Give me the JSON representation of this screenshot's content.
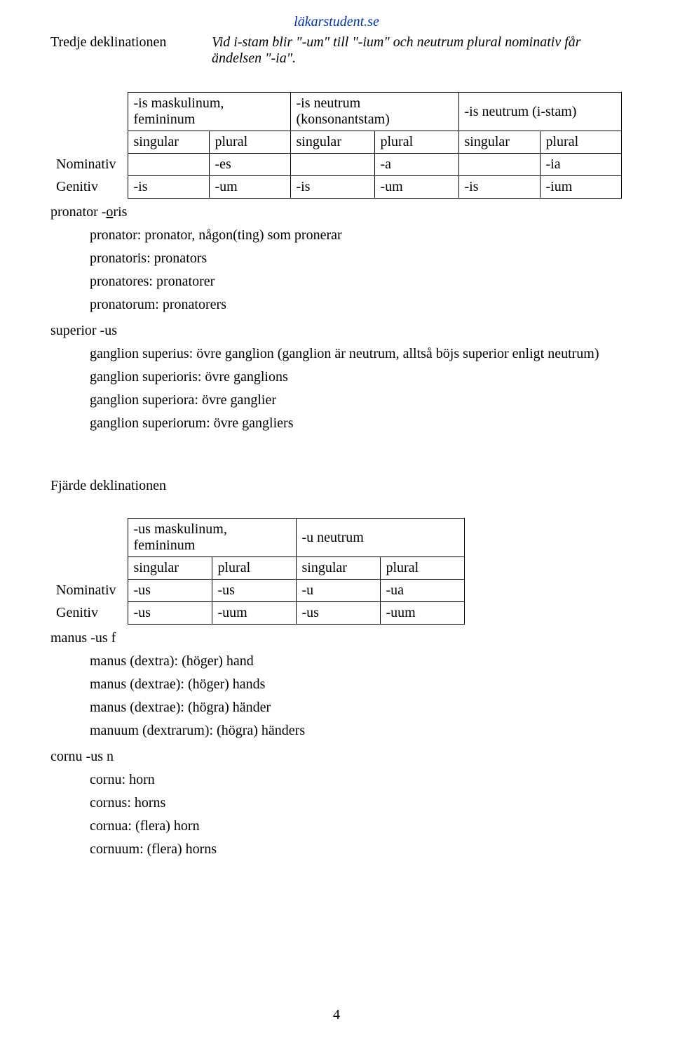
{
  "site": {
    "name": "läkarstudent.se"
  },
  "section3": {
    "title": "Tredje deklinationen",
    "subtitle": "Vid i-stam blir \"-um\" till \"-ium\" och neutrum plural nominativ får ändelsen \"-ia\".",
    "table": {
      "group_headers": [
        "-is maskulinum, femininum",
        "-is neutrum (konsonantstam)",
        "-is neutrum (i-stam)"
      ],
      "sub_headers": [
        "singular",
        "plural",
        "singular",
        "plural",
        "singular",
        "plural"
      ],
      "rows": [
        {
          "label": "Nominativ",
          "cells": [
            "",
            "-es",
            "",
            "-a",
            "",
            "-ia"
          ]
        },
        {
          "label": "Genitiv",
          "cells": [
            "-is",
            "-um",
            "-is",
            "-um",
            "-is",
            "-ium"
          ]
        }
      ]
    },
    "ex1_label": "pronator -oris",
    "ex1_label_plain_before": "pronator -",
    "ex1_label_u": "o",
    "ex1_label_plain_after": "ris",
    "ex1_lines": [
      "pronator: pronator, någon(ting) som pronerar",
      "pronatoris: pronators",
      "pronatores: pronatorer",
      "pronatorum: pronatorers"
    ],
    "ex2_label": "superior -us",
    "ex2_lines": [
      "ganglion superius: övre ganglion (ganglion är neutrum, alltså böjs superior enligt neutrum)",
      "ganglion superioris: övre ganglions",
      "ganglion superiora: övre ganglier",
      "ganglion superiorum: övre gangliers"
    ]
  },
  "section4": {
    "title": "Fjärde deklinationen",
    "table": {
      "group_headers": [
        "-us maskulinum, femininum",
        "-u neutrum"
      ],
      "sub_headers": [
        "singular",
        "plural",
        "singular",
        "plural"
      ],
      "rows": [
        {
          "label": "Nominativ",
          "cells": [
            "-us",
            "-us",
            "-u",
            "-ua"
          ]
        },
        {
          "label": "Genitiv",
          "cells": [
            "-us",
            "-uum",
            "-us",
            "-uum"
          ]
        }
      ]
    },
    "ex1_label": "manus -us f",
    "ex1_lines": [
      "manus (dextra): (höger) hand",
      "manus (dextrae): (höger) hands",
      "manus (dextrae): (högra) händer",
      "manuum (dextrarum): (högra) händers"
    ],
    "ex2_label": "cornu -us n",
    "ex2_lines": [
      "cornu: horn",
      "cornus: horns",
      "cornua: (flera) horn",
      "cornuum: (flera) horns"
    ]
  },
  "page_number": "4"
}
